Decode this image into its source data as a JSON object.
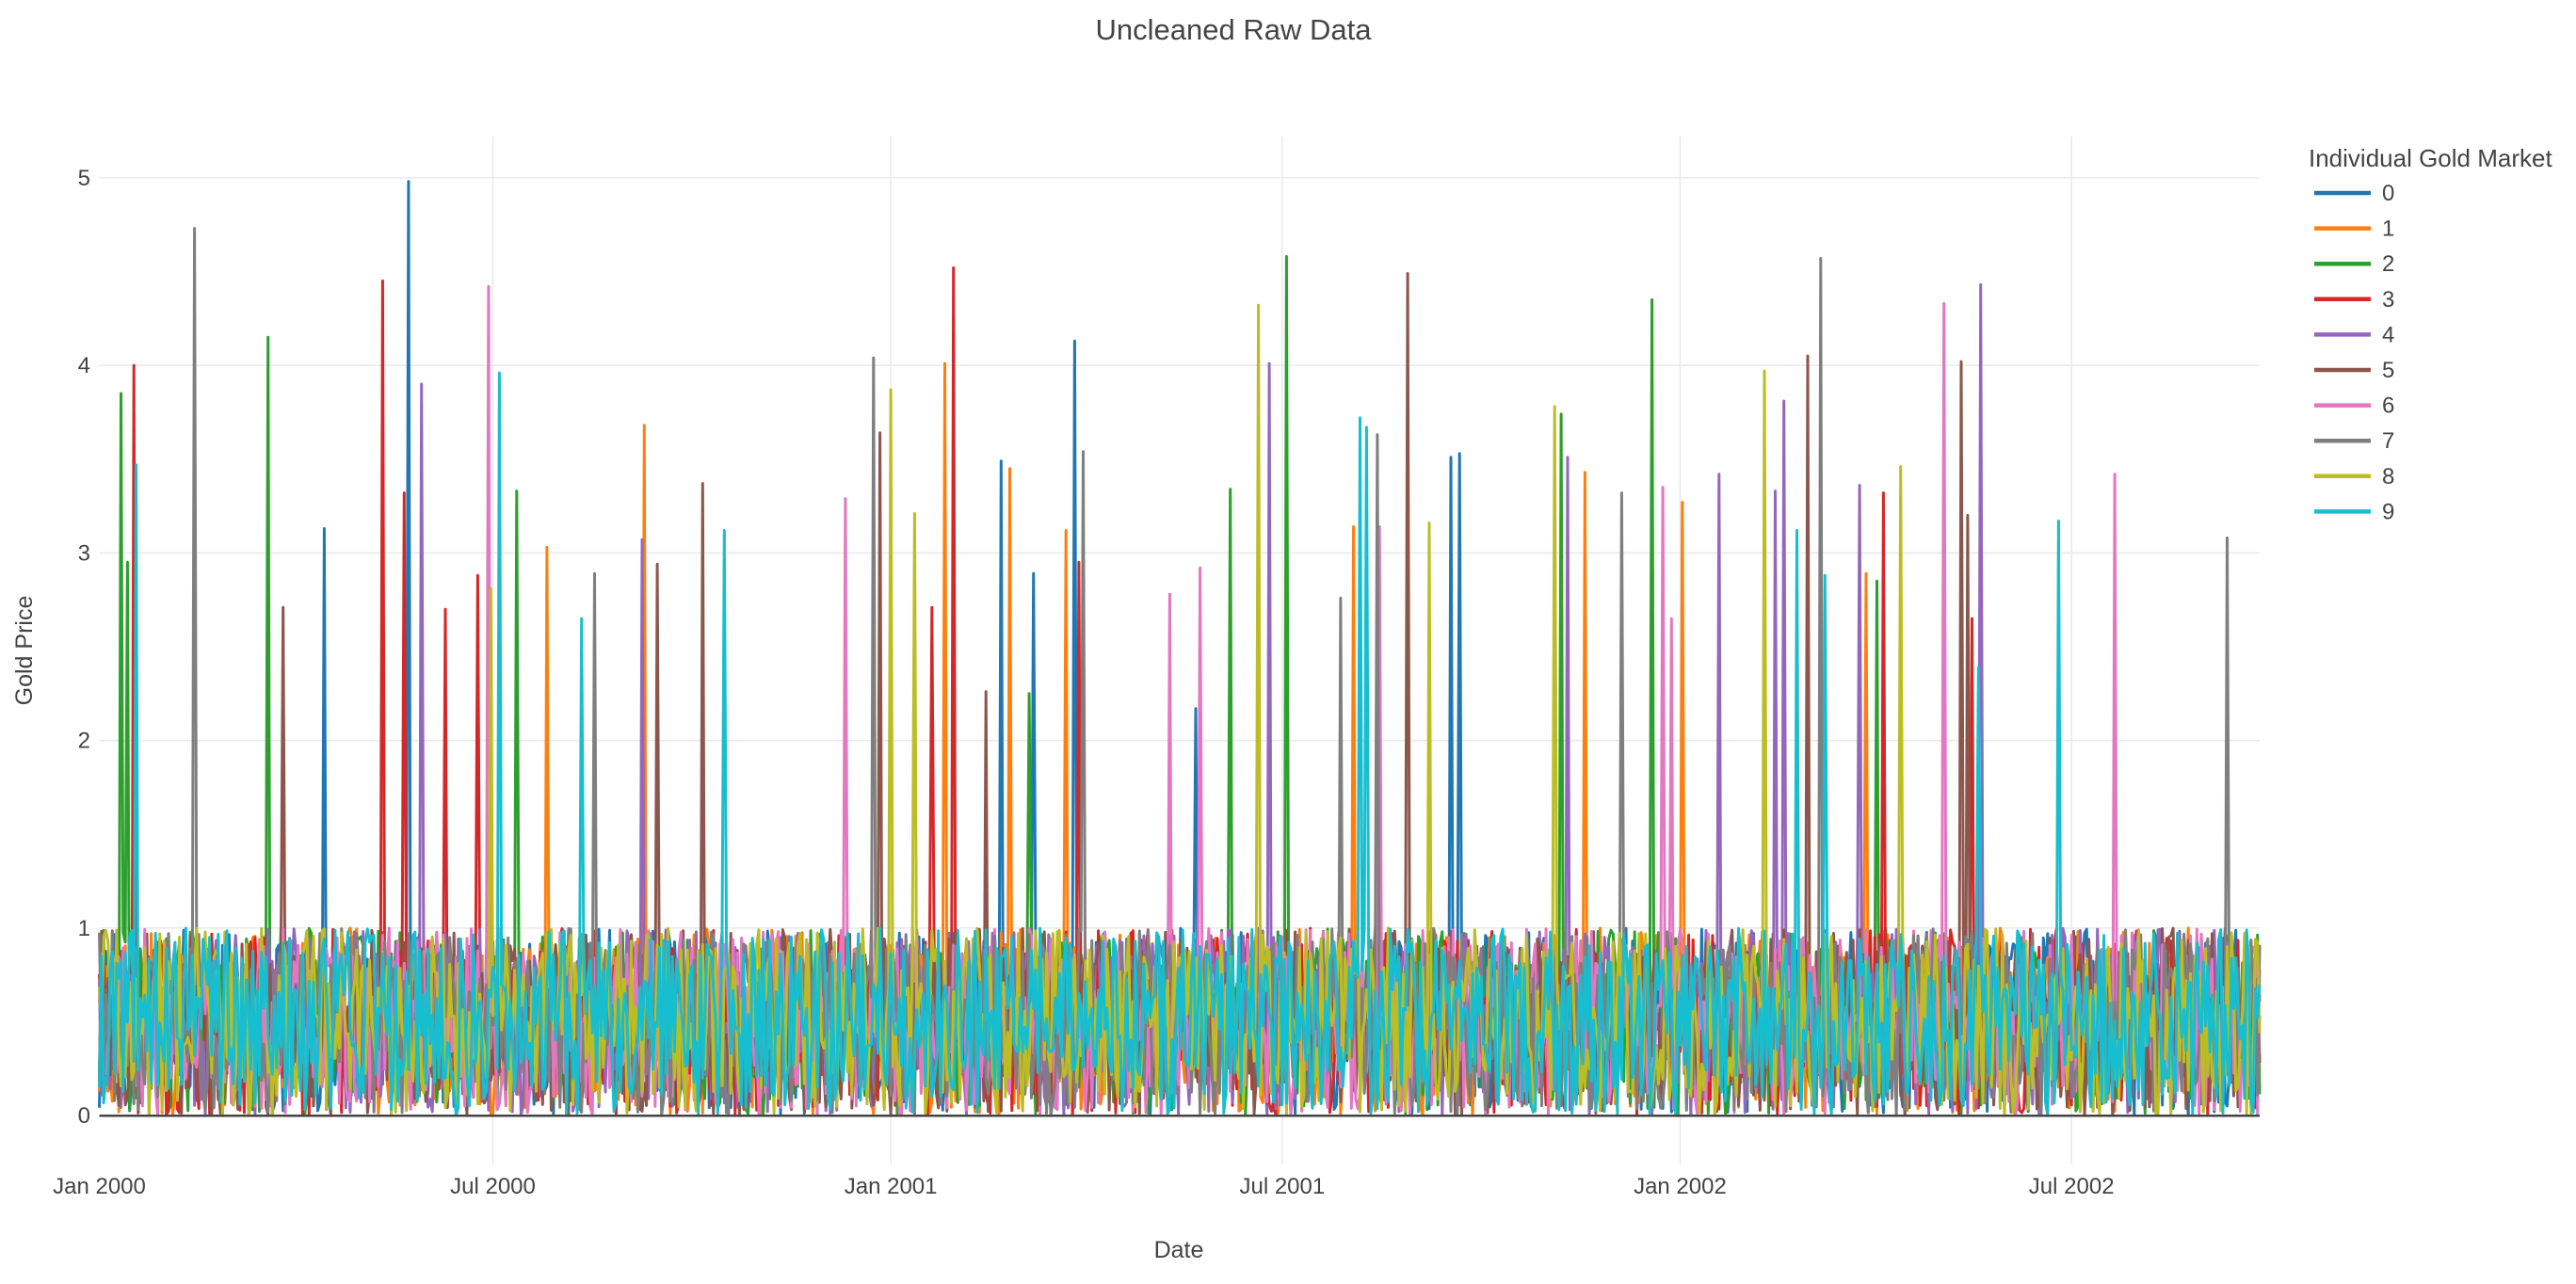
{
  "figure": {
    "title": "Uncleaned Raw Data",
    "background": "#ffffff"
  },
  "style_colors": {
    "font": "#444444",
    "grid": "#e9e9e9",
    "zeroline": "#444444"
  },
  "legend": {
    "title": "Individual Gold Market",
    "items": [
      {
        "label": "0",
        "color": "#1f77b4"
      },
      {
        "label": "1",
        "color": "#ff7f0e"
      },
      {
        "label": "2",
        "color": "#2ca02c"
      },
      {
        "label": "3",
        "color": "#d62728"
      },
      {
        "label": "4",
        "color": "#9467bd"
      },
      {
        "label": "5",
        "color": "#8c564b"
      },
      {
        "label": "6",
        "color": "#e377c2"
      },
      {
        "label": "7",
        "color": "#7f7f7f"
      },
      {
        "label": "8",
        "color": "#bcbd22"
      },
      {
        "label": "9",
        "color": "#17becf"
      }
    ]
  },
  "chart_data": {
    "type": "line",
    "title": "Uncleaned Raw Data",
    "xlabel": "Date",
    "ylabel": "Gold Price",
    "legend_title": "Individual Gold Market",
    "legend_position": "right",
    "grid": true,
    "n_days": 1000,
    "ylim": [
      -0.26,
      5.22
    ],
    "y_ticks": [
      0,
      1,
      2,
      3,
      4,
      5
    ],
    "x_ticks": [
      {
        "label": "Jan 2000",
        "day": 0
      },
      {
        "label": "Jul 2000",
        "day": 182
      },
      {
        "label": "Jan 2001",
        "day": 366
      },
      {
        "label": "Jul 2001",
        "day": 547
      },
      {
        "label": "Jan 2002",
        "day": 731
      },
      {
        "label": "Jul 2002",
        "day": 912
      }
    ],
    "series": [
      {
        "name": "0",
        "color": "#1f77b4"
      },
      {
        "name": "1",
        "color": "#ff7f0e"
      },
      {
        "name": "2",
        "color": "#2ca02c"
      },
      {
        "name": "3",
        "color": "#d62728"
      },
      {
        "name": "4",
        "color": "#9467bd"
      },
      {
        "name": "5",
        "color": "#8c564b"
      },
      {
        "name": "6",
        "color": "#e377c2"
      },
      {
        "name": "7",
        "color": "#7f7f7f"
      },
      {
        "name": "8",
        "color": "#bcbd22"
      },
      {
        "name": "9",
        "color": "#17becf"
      }
    ],
    "noise_band": {
      "distribution": "uniform",
      "min": 0,
      "max": 1,
      "description": "all 10 series oscillate daily between 0 and 1 for the full range"
    },
    "outliers": [
      {
        "s": 2,
        "day": 10,
        "v": 3.85
      },
      {
        "s": 2,
        "day": 13,
        "v": 2.95
      },
      {
        "s": 3,
        "day": 16,
        "v": 4.0
      },
      {
        "s": 9,
        "day": 17,
        "v": 3.47
      },
      {
        "s": 7,
        "day": 44,
        "v": 4.73
      },
      {
        "s": 2,
        "day": 78,
        "v": 4.15
      },
      {
        "s": 5,
        "day": 85,
        "v": 2.71
      },
      {
        "s": 0,
        "day": 104,
        "v": 3.13
      },
      {
        "s": 3,
        "day": 131,
        "v": 4.45
      },
      {
        "s": 3,
        "day": 141,
        "v": 3.32
      },
      {
        "s": 0,
        "day": 143,
        "v": 4.98
      },
      {
        "s": 4,
        "day": 149,
        "v": 3.9
      },
      {
        "s": 3,
        "day": 160,
        "v": 2.7
      },
      {
        "s": 3,
        "day": 175,
        "v": 2.88
      },
      {
        "s": 6,
        "day": 180,
        "v": 4.42
      },
      {
        "s": 8,
        "day": 181,
        "v": 2.81
      },
      {
        "s": 9,
        "day": 185,
        "v": 3.96
      },
      {
        "s": 2,
        "day": 193,
        "v": 3.33
      },
      {
        "s": 1,
        "day": 207,
        "v": 3.03
      },
      {
        "s": 9,
        "day": 223,
        "v": 2.65
      },
      {
        "s": 7,
        "day": 229,
        "v": 2.89
      },
      {
        "s": 4,
        "day": 251,
        "v": 3.07
      },
      {
        "s": 1,
        "day": 252,
        "v": 3.68
      },
      {
        "s": 5,
        "day": 258,
        "v": 2.94
      },
      {
        "s": 5,
        "day": 279,
        "v": 3.37
      },
      {
        "s": 9,
        "day": 289,
        "v": 3.12
      },
      {
        "s": 6,
        "day": 345,
        "v": 3.29
      },
      {
        "s": 7,
        "day": 358,
        "v": 4.04
      },
      {
        "s": 5,
        "day": 361,
        "v": 3.64
      },
      {
        "s": 8,
        "day": 366,
        "v": 3.87
      },
      {
        "s": 8,
        "day": 377,
        "v": 3.21
      },
      {
        "s": 3,
        "day": 385,
        "v": 2.71
      },
      {
        "s": 1,
        "day": 391,
        "v": 4.01
      },
      {
        "s": 3,
        "day": 395,
        "v": 4.52
      },
      {
        "s": 5,
        "day": 410,
        "v": 2.26
      },
      {
        "s": 0,
        "day": 417,
        "v": 3.49
      },
      {
        "s": 1,
        "day": 421,
        "v": 3.45
      },
      {
        "s": 2,
        "day": 430,
        "v": 2.25
      },
      {
        "s": 0,
        "day": 432,
        "v": 2.89
      },
      {
        "s": 1,
        "day": 447,
        "v": 3.12
      },
      {
        "s": 0,
        "day": 451,
        "v": 4.13
      },
      {
        "s": 3,
        "day": 453,
        "v": 2.95
      },
      {
        "s": 7,
        "day": 455,
        "v": 3.54
      },
      {
        "s": 6,
        "day": 495,
        "v": 2.78
      },
      {
        "s": 0,
        "day": 507,
        "v": 2.17
      },
      {
        "s": 6,
        "day": 509,
        "v": 2.92
      },
      {
        "s": 2,
        "day": 523,
        "v": 3.34
      },
      {
        "s": 8,
        "day": 536,
        "v": 4.32
      },
      {
        "s": 4,
        "day": 541,
        "v": 4.01
      },
      {
        "s": 2,
        "day": 549,
        "v": 4.58
      },
      {
        "s": 7,
        "day": 574,
        "v": 2.76
      },
      {
        "s": 1,
        "day": 580,
        "v": 3.14
      },
      {
        "s": 9,
        "day": 583,
        "v": 3.72
      },
      {
        "s": 9,
        "day": 586,
        "v": 3.67
      },
      {
        "s": 7,
        "day": 591,
        "v": 3.63
      },
      {
        "s": 6,
        "day": 592,
        "v": 3.14
      },
      {
        "s": 5,
        "day": 605,
        "v": 4.49
      },
      {
        "s": 8,
        "day": 615,
        "v": 3.16
      },
      {
        "s": 0,
        "day": 625,
        "v": 3.51
      },
      {
        "s": 0,
        "day": 629,
        "v": 3.53
      },
      {
        "s": 8,
        "day": 673,
        "v": 3.78
      },
      {
        "s": 2,
        "day": 676,
        "v": 3.74
      },
      {
        "s": 4,
        "day": 679,
        "v": 3.51
      },
      {
        "s": 1,
        "day": 687,
        "v": 3.43
      },
      {
        "s": 7,
        "day": 704,
        "v": 3.32
      },
      {
        "s": 2,
        "day": 718,
        "v": 4.35
      },
      {
        "s": 6,
        "day": 723,
        "v": 3.35
      },
      {
        "s": 6,
        "day": 727,
        "v": 2.65
      },
      {
        "s": 1,
        "day": 732,
        "v": 3.27
      },
      {
        "s": 4,
        "day": 749,
        "v": 3.42
      },
      {
        "s": 8,
        "day": 770,
        "v": 3.97
      },
      {
        "s": 4,
        "day": 775,
        "v": 3.33
      },
      {
        "s": 4,
        "day": 779,
        "v": 3.81
      },
      {
        "s": 9,
        "day": 785,
        "v": 3.12
      },
      {
        "s": 5,
        "day": 790,
        "v": 4.05
      },
      {
        "s": 7,
        "day": 796,
        "v": 4.57
      },
      {
        "s": 9,
        "day": 798,
        "v": 2.88
      },
      {
        "s": 4,
        "day": 814,
        "v": 3.36
      },
      {
        "s": 1,
        "day": 817,
        "v": 2.89
      },
      {
        "s": 2,
        "day": 822,
        "v": 2.85
      },
      {
        "s": 3,
        "day": 825,
        "v": 3.32
      },
      {
        "s": 8,
        "day": 833,
        "v": 3.46
      },
      {
        "s": 6,
        "day": 853,
        "v": 4.33
      },
      {
        "s": 5,
        "day": 861,
        "v": 4.02
      },
      {
        "s": 5,
        "day": 864,
        "v": 3.2
      },
      {
        "s": 3,
        "day": 866,
        "v": 2.65
      },
      {
        "s": 9,
        "day": 869,
        "v": 2.39
      },
      {
        "s": 4,
        "day": 870,
        "v": 4.43
      },
      {
        "s": 9,
        "day": 906,
        "v": 3.17
      },
      {
        "s": 6,
        "day": 932,
        "v": 3.42
      },
      {
        "s": 7,
        "day": 984,
        "v": 3.08
      }
    ]
  }
}
